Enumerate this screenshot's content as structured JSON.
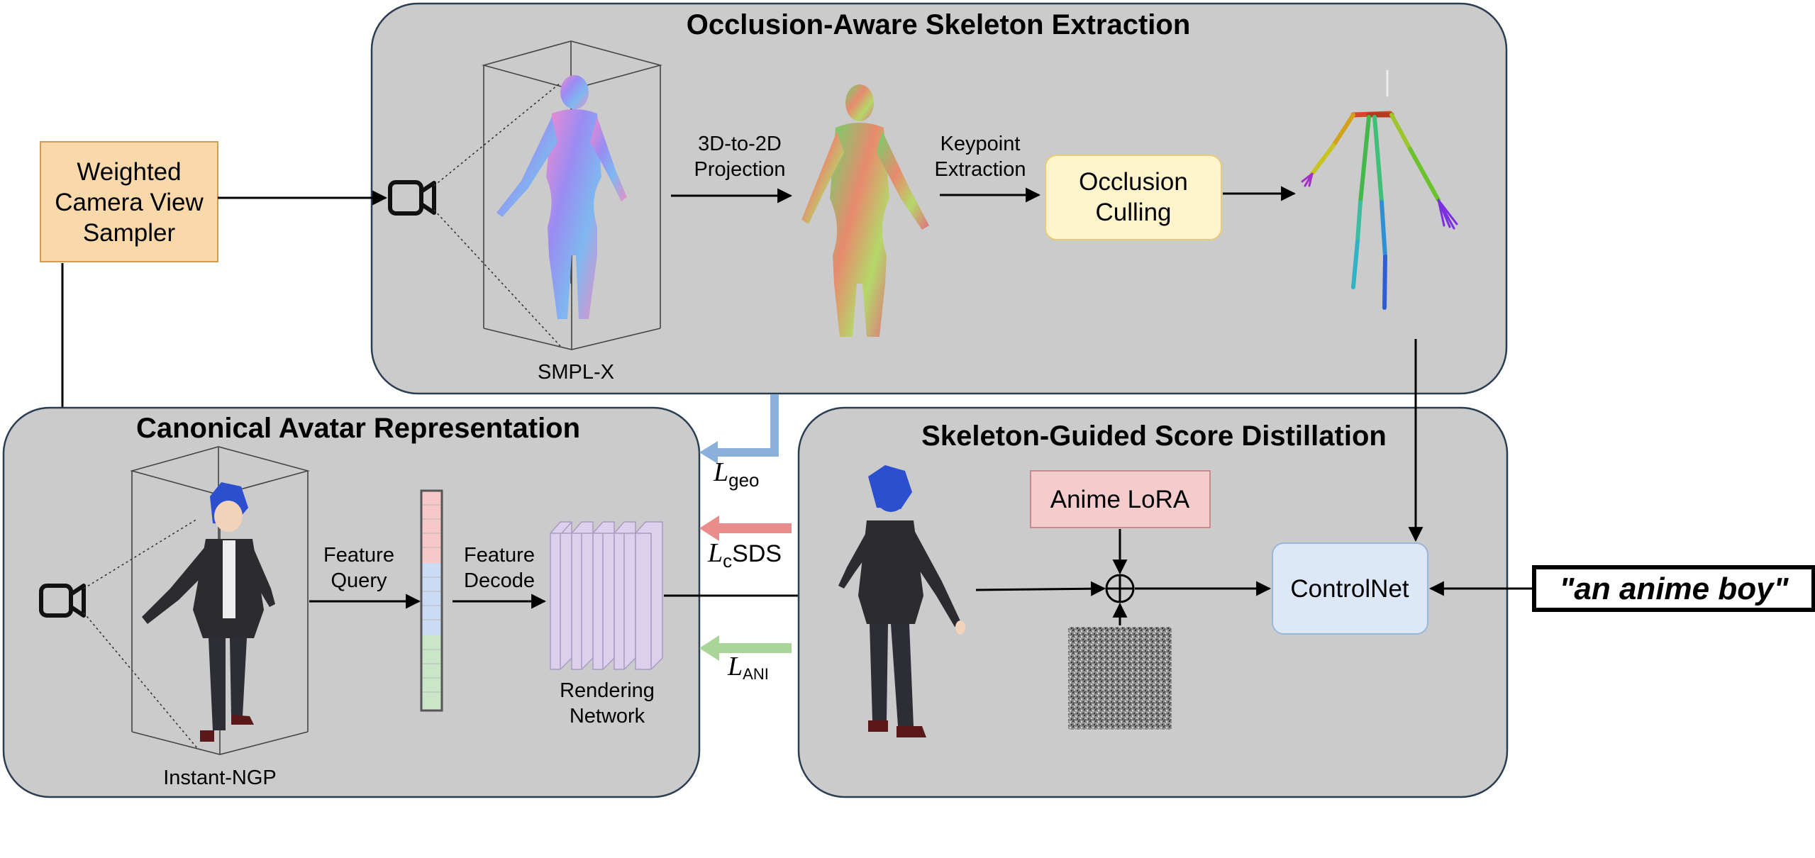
{
  "sampler": {
    "label_lines": [
      "Weighted",
      "Camera View",
      "Sampler"
    ],
    "fill": "#f9d8a9",
    "stroke": "#d59b55"
  },
  "panel_top": {
    "title": "Occlusion-Aware Skeleton Extraction",
    "mesh_caption": "SMPL-X",
    "projection_lines": [
      "3D-to-2D",
      "Projection"
    ],
    "keypoint_lines": [
      "Keypoint",
      "Extraction"
    ],
    "culling_lines": [
      "Occlusion",
      "Culling"
    ],
    "culling_fill": "#fff4cc"
  },
  "panel_left": {
    "title": "Canonical Avatar Representation",
    "grid_caption": "Instant-NGP",
    "query_lines": [
      "Feature",
      "Query"
    ],
    "decode_lines": [
      "Feature",
      "Decode"
    ],
    "network_lines": [
      "Rendering",
      "Network"
    ],
    "network_fill": "#ddd0ec"
  },
  "panel_right": {
    "title": "Skeleton-Guided Score Distillation",
    "lora_label": "Anime LoRA",
    "lora_fill": "#f5cccc",
    "controlnet_label": "ControlNet",
    "controlnet_fill": "#dce8f8"
  },
  "losses": {
    "geo": {
      "symbol": "L",
      "subscript": "geo",
      "color": "#8ab0dc"
    },
    "sds": {
      "symbol": "L",
      "subscript": "c",
      "suffix": "SDS",
      "color": "#e88c8c"
    },
    "ani": {
      "symbol": "L",
      "subscript": "ANI",
      "color": "#a9d598"
    }
  },
  "prompt": {
    "text": "\"an anime boy\""
  },
  "feature_vector_colors": [
    "#f6c8c8",
    "#c9dcf4",
    "#c9e6c6"
  ]
}
